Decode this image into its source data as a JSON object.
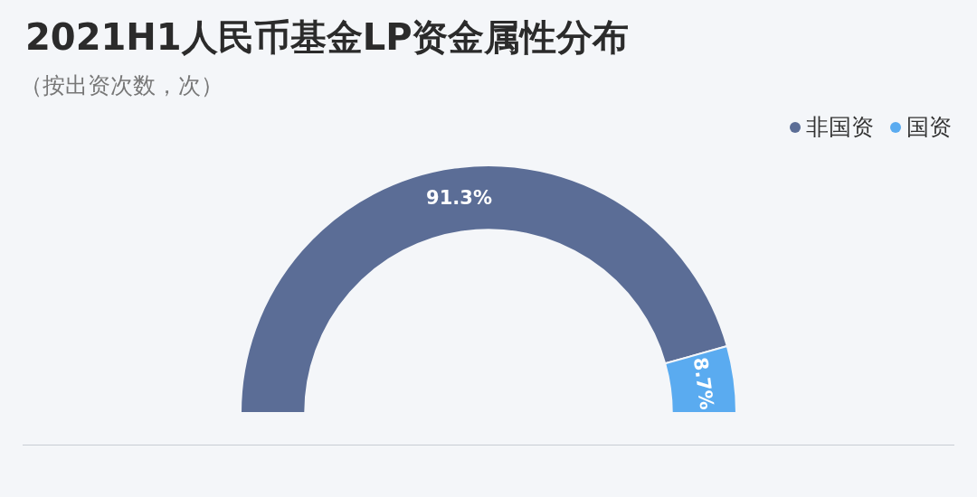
{
  "chart_data": {
    "type": "donut",
    "title": "2021H1人民币基金LP资金属性分布",
    "subtitle": "（按出资次数，次）",
    "categories": [
      "非国资",
      "国资"
    ],
    "values": [
      91.3,
      8.7
    ],
    "colors": [
      "#5b6d96",
      "#5aabf0"
    ],
    "value_labels": [
      "91.3%",
      "8.7%"
    ],
    "legend": "top right"
  }
}
